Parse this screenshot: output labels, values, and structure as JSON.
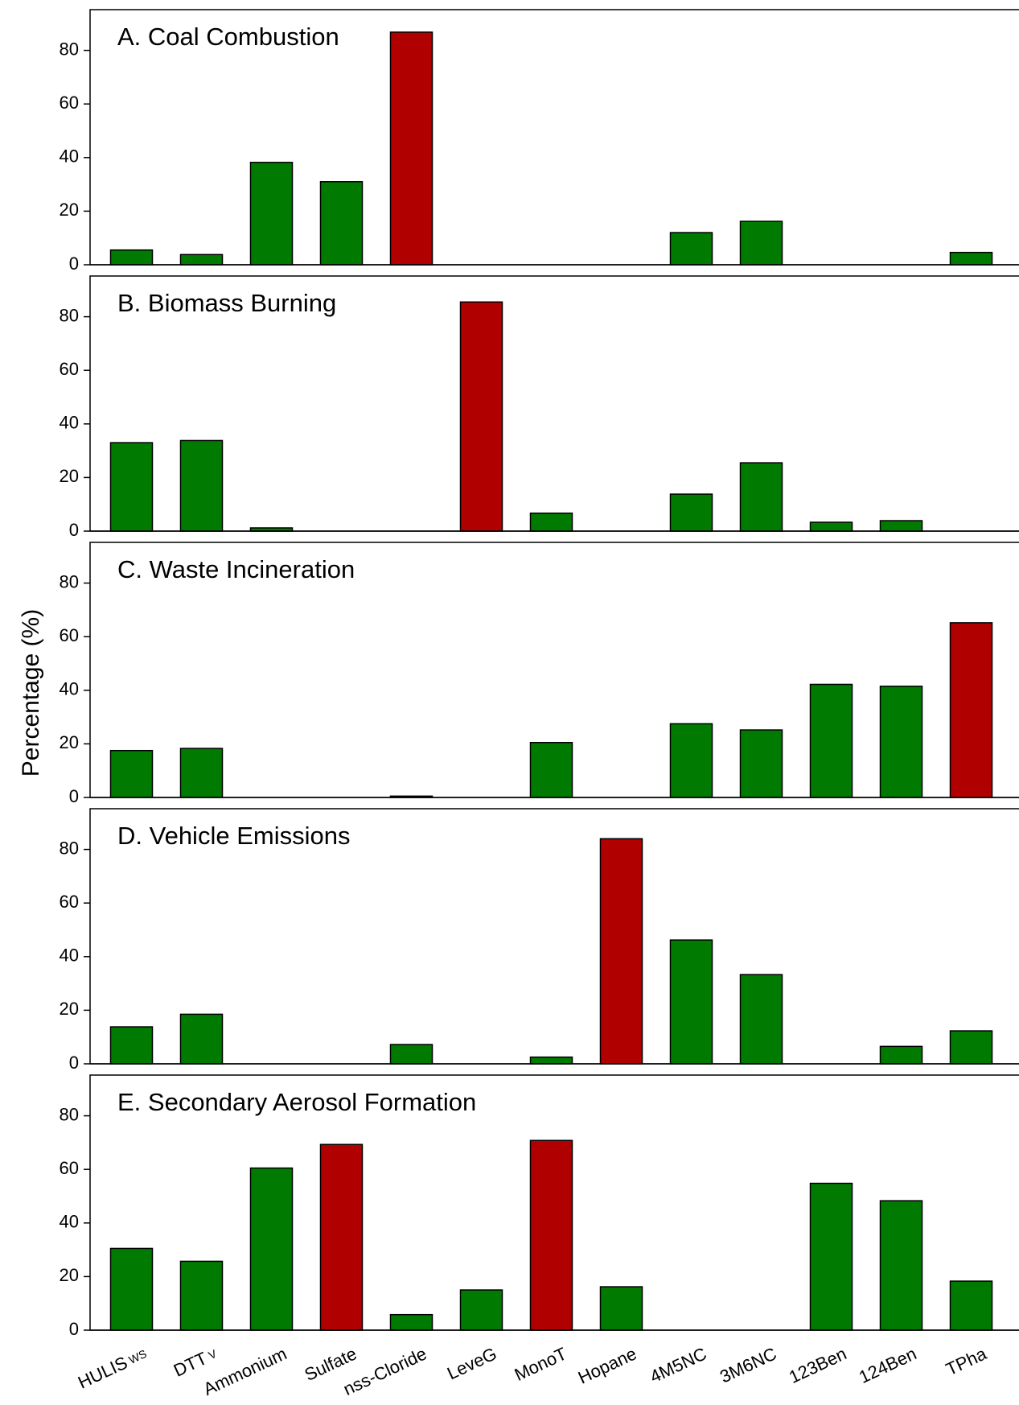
{
  "chart_data": {
    "type": "bar",
    "ylabel": "Percentage (%)",
    "ylim": [
      0,
      95
    ],
    "yticks": [
      0,
      20,
      40,
      60,
      80
    ],
    "categories": [
      "HULIS",
      "DTT",
      "Ammonium",
      "Sulfate",
      "nss-Cloride",
      "LeveG",
      "MonoT",
      "Hopane",
      "4M5NC",
      "3M6NC",
      "123Ben",
      "124Ben",
      "TPha"
    ],
    "category_subscripts": [
      "WS",
      "V",
      "",
      "",
      "",
      "",
      "",
      "",
      "",
      "",
      "",
      "",
      ""
    ],
    "colors": {
      "default": "#007a00",
      "highlight": "#b00000",
      "stroke": "#000000"
    },
    "panels": [
      {
        "title": "A. Coal Combustion",
        "values": [
          5.5,
          3.8,
          38.2,
          31,
          86.8,
          0,
          0,
          0,
          12,
          16.2,
          0,
          0,
          4.6
        ],
        "highlight": [
          4
        ]
      },
      {
        "title": "B. Biomass Burning",
        "values": [
          33,
          33.8,
          1.2,
          0,
          0,
          85.5,
          6.7,
          0,
          13.8,
          25.5,
          3.3,
          3.9,
          0
        ],
        "highlight": [
          5
        ]
      },
      {
        "title": "C. Waste Incineration",
        "values": [
          17.5,
          18.3,
          0,
          0,
          0.5,
          0,
          20.5,
          0,
          27.5,
          25.2,
          42.2,
          41.5,
          65.2
        ],
        "highlight": [
          12
        ]
      },
      {
        "title": "D. Vehicle Emissions",
        "values": [
          13.8,
          18.5,
          0,
          0,
          7.2,
          0,
          2.5,
          84,
          46.2,
          33.3,
          0,
          6.5,
          12.3
        ],
        "highlight": [
          7
        ]
      },
      {
        "title": "E. Secondary Aerosol Formation",
        "values": [
          30.5,
          25.7,
          60.5,
          69.3,
          5.8,
          15,
          70.8,
          16.2,
          0,
          0,
          54.8,
          48.3,
          18.3
        ],
        "highlight": [
          3,
          6
        ]
      }
    ]
  }
}
